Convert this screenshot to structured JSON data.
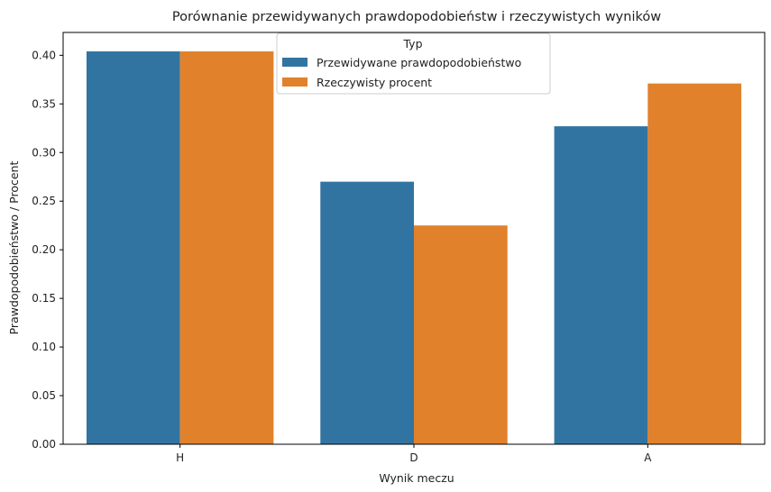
{
  "colors": {
    "series_1": "#3274a1",
    "series_2": "#e1812c",
    "axis": "#000000",
    "legend_border": "#cccccc"
  },
  "chart_data": {
    "type": "bar",
    "title": "Porównanie przewidywanych prawdopodobieństw i rzeczywistych wyników",
    "xlabel": "Wynik meczu",
    "ylabel": "Prawdopodobieństwo / Procent",
    "categories": [
      "H",
      "D",
      "A"
    ],
    "series": [
      {
        "name": "Przewidywane prawdopodobieństwo",
        "values": [
          0.404,
          0.27,
          0.327
        ]
      },
      {
        "name": "Rzeczywisty procent",
        "values": [
          0.404,
          0.225,
          0.371
        ]
      }
    ],
    "ylim": [
      0,
      0.4235
    ],
    "yticks": [
      0.0,
      0.05,
      0.1,
      0.15,
      0.2,
      0.25,
      0.3,
      0.35,
      0.4
    ],
    "ytick_labels": [
      "0.00",
      "0.05",
      "0.10",
      "0.15",
      "0.20",
      "0.25",
      "0.30",
      "0.35",
      "0.40"
    ],
    "grid": false,
    "legend": {
      "title": "Typ",
      "placement": "top-center"
    }
  }
}
